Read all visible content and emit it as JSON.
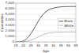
{
  "chart_data": {
    "type": "line",
    "title": "",
    "xlabel": "Age",
    "ylabel": "Cumulative",
    "x": [
      15,
      16,
      17,
      18,
      19,
      20,
      21,
      22,
      23,
      24,
      25,
      26,
      27,
      28,
      29,
      30,
      31,
      32,
      33,
      34,
      35,
      36,
      37,
      38,
      39,
      40,
      41,
      42,
      43,
      44,
      45,
      46,
      47,
      48,
      49,
      50,
      51,
      52,
      53,
      54,
      55
    ],
    "series": [
      {
        "name": "Black",
        "color": "#333333",
        "values": [
          0,
          5,
          15,
          40,
          90,
          180,
          320,
          520,
          780,
          1100,
          1480,
          1900,
          2350,
          2820,
          3290,
          3750,
          4180,
          4570,
          4910,
          5200,
          5440,
          5640,
          5800,
          5930,
          6030,
          6110,
          6175,
          6230,
          6270,
          6300,
          6325,
          6345,
          6360,
          6370,
          6378,
          6384,
          6389,
          6392,
          6395,
          6397,
          6399
        ]
      },
      {
        "name": "White",
        "color": "#aaaaaa",
        "values": [
          0,
          1,
          3,
          8,
          18,
          35,
          65,
          105,
          160,
          230,
          315,
          415,
          530,
          650,
          780,
          910,
          1040,
          1165,
          1280,
          1385,
          1475,
          1550,
          1610,
          1655,
          1690,
          1715,
          1733,
          1748,
          1759,
          1767,
          1773,
          1778,
          1781,
          1784,
          1786,
          1788,
          1789,
          1790,
          1791,
          1791,
          1792
        ]
      }
    ],
    "xlim": [
      15,
      55
    ],
    "xticks": [
      15,
      20,
      25,
      30,
      35,
      40,
      45,
      50,
      55
    ],
    "ylim": [
      0,
      7000
    ],
    "yticks": [
      0,
      {
        "value": 1000,
        "label": "1,000"
      },
      {
        "value": 2000,
        "label": "2,000"
      },
      {
        "value": 3000,
        "label": "3,000"
      },
      {
        "value": 4000,
        "label": "4,000"
      },
      {
        "value": 5000,
        "label": "5,000"
      },
      {
        "value": 6000,
        "label": "6,000"
      },
      {
        "value": 7000,
        "label": "7,000"
      }
    ],
    "grid": true,
    "legend": "right"
  }
}
